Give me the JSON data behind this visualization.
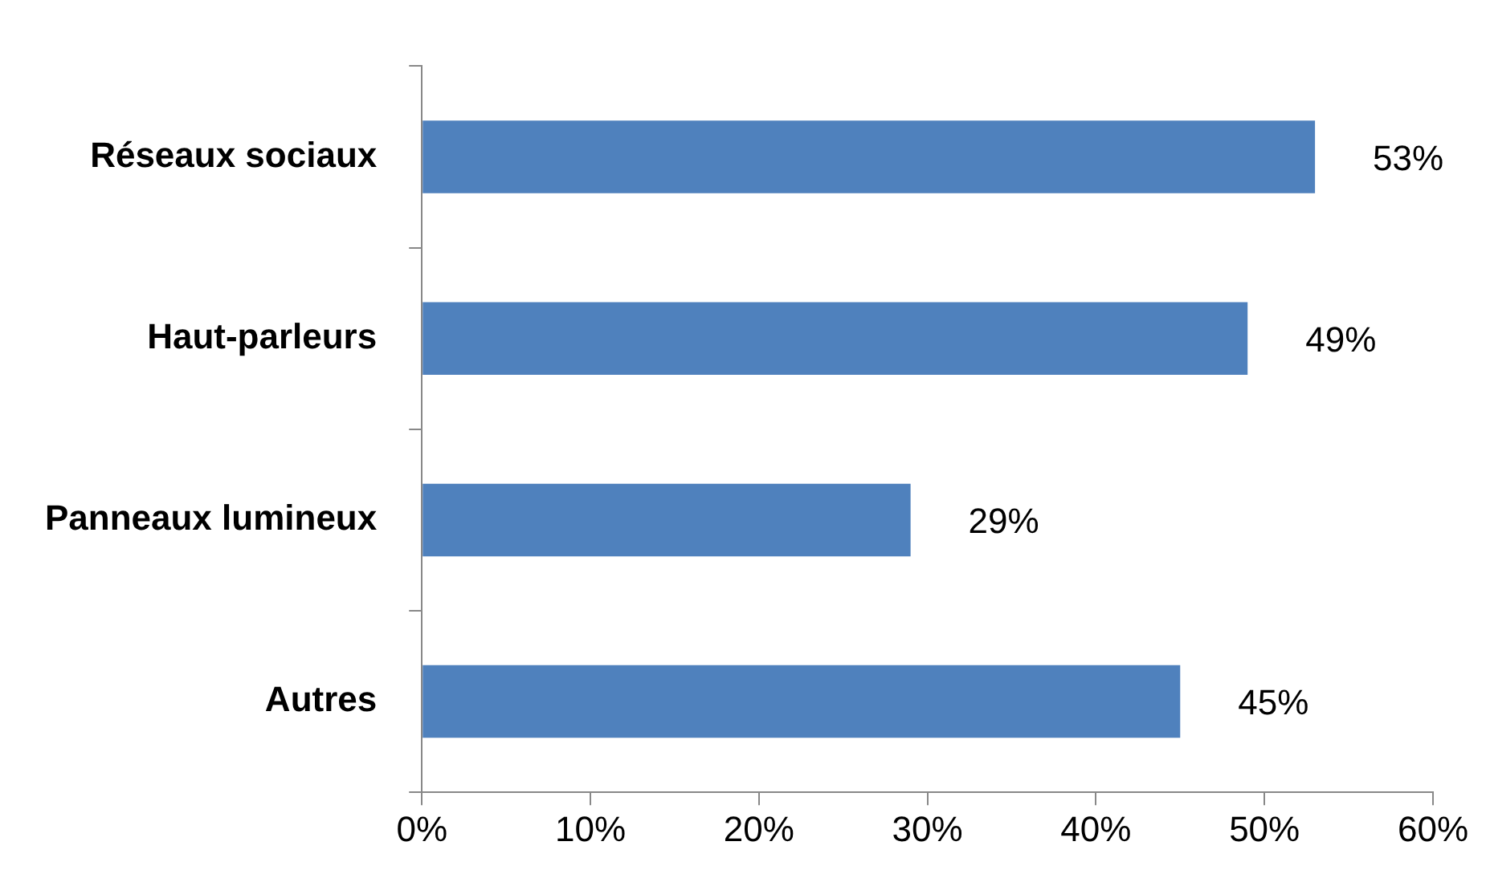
{
  "chart_data": {
    "type": "bar",
    "orientation": "horizontal",
    "categories": [
      "Réseaux sociaux",
      "Haut-parleurs",
      "Panneaux lumineux",
      "Autres"
    ],
    "values": [
      53,
      49,
      29,
      45
    ],
    "value_labels": [
      "53%",
      "49%",
      "29%",
      "45%"
    ],
    "color": "#4f81bd",
    "xlim": [
      0,
      60
    ],
    "xticks": [
      {
        "value": 0,
        "label": "0%"
      },
      {
        "value": 10,
        "label": "10%"
      },
      {
        "value": 20,
        "label": "20%"
      },
      {
        "value": 30,
        "label": "30%"
      },
      {
        "value": 40,
        "label": "40%"
      },
      {
        "value": 50,
        "label": "50%"
      },
      {
        "value": 60,
        "label": "60%"
      }
    ],
    "grid": false,
    "legend": false
  }
}
